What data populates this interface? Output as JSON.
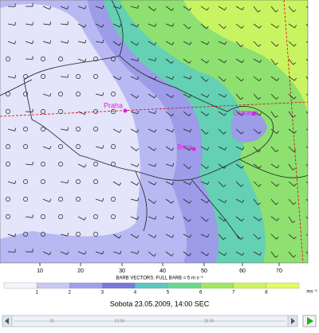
{
  "map": {
    "cities": [
      {
        "label": "Praha"
      },
      {
        "label": "Ostrava"
      },
      {
        "label": "Brno"
      }
    ],
    "x_axis_labels": [
      10,
      20,
      30,
      40,
      50,
      60,
      70
    ],
    "barb_note": "BARB VECTORS:  FULL BARB = 5 m s⁻¹",
    "colorbar_labels": [
      "1",
      "2",
      "3",
      "4",
      "5",
      "6",
      "7",
      "8"
    ],
    "colorbar_unit": "ms⁻¹",
    "title": "Sobota 23.05.2009, 14:00 SEC",
    "timeline_labels": [
      "25.",
      "24.05",
      "25.05"
    ]
  }
}
